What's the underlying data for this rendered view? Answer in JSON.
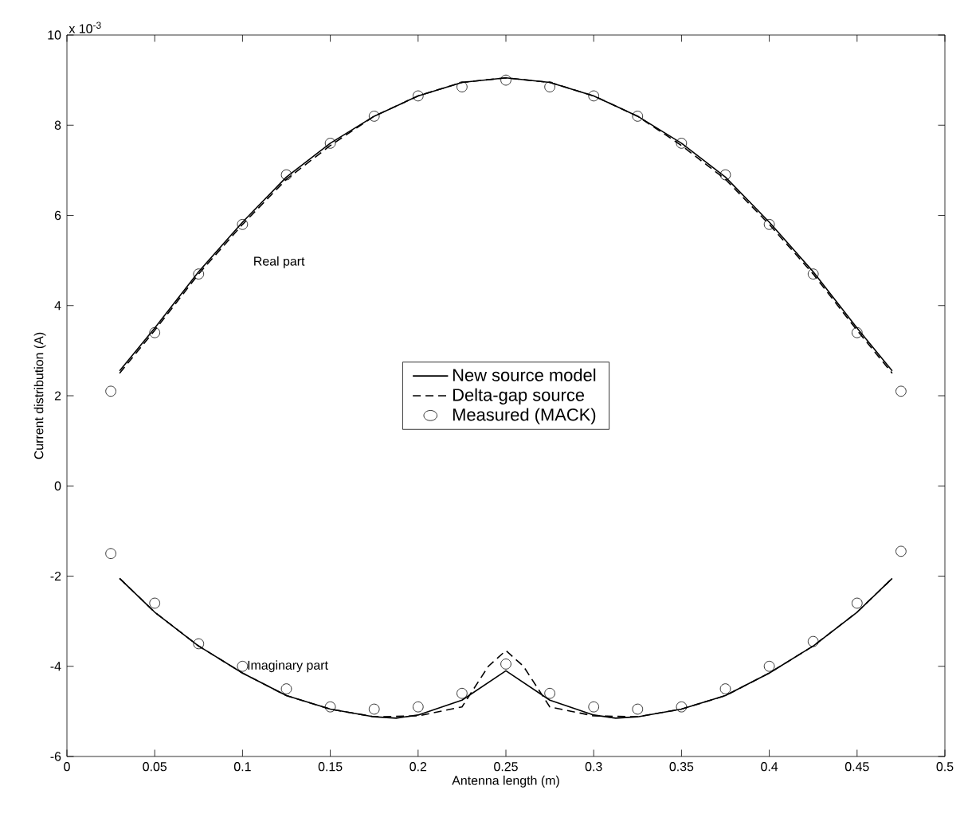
{
  "chart_data": {
    "type": "line",
    "xlabel": "Antenna length (m)",
    "ylabel": "Current distribution (A)",
    "xlim": [
      0,
      0.5
    ],
    "ylim": [
      -6,
      10
    ],
    "xticks": [
      0,
      0.05,
      0.1,
      0.15,
      0.2,
      0.25,
      0.3,
      0.35,
      0.4,
      0.45,
      0.5
    ],
    "yticks": [
      -6,
      -4,
      -2,
      0,
      2,
      4,
      6,
      8,
      10
    ],
    "grid": false,
    "legend": "center",
    "annotations": [
      "x 10$^{-3}$",
      "Real part",
      "Imaginary part"
    ],
    "series": [
      {
        "name": "New source model",
        "line_style": "solid",
        "color": "#000000",
        "x": [
          0.03,
          0.05,
          0.075,
          0.1,
          0.125,
          0.15,
          0.175,
          0.2,
          0.225,
          0.25,
          0.275,
          0.3,
          0.325,
          0.35,
          0.375,
          0.4,
          0.425,
          0.45,
          0.47
        ],
        "values": [
          2.55,
          3.5,
          4.75,
          5.85,
          6.85,
          7.6,
          8.2,
          8.65,
          8.95,
          9.05,
          8.95,
          8.65,
          8.2,
          7.6,
          6.85,
          5.85,
          4.75,
          3.5,
          2.55
        ]
      },
      {
        "name": "Delta-gap source",
        "line_style": "dashed",
        "color": "#000000",
        "x": [
          0.03,
          0.05,
          0.075,
          0.1,
          0.125,
          0.15,
          0.175,
          0.2,
          0.225,
          0.25,
          0.275,
          0.3,
          0.325,
          0.35,
          0.375,
          0.4,
          0.425,
          0.45,
          0.47
        ],
        "values": [
          2.5,
          3.45,
          4.7,
          5.8,
          6.8,
          7.55,
          8.2,
          8.65,
          8.95,
          9.05,
          8.95,
          8.65,
          8.2,
          7.55,
          6.8,
          5.8,
          4.7,
          3.45,
          2.5
        ]
      },
      {
        "name": "Measured (MACK)",
        "type": "scatter",
        "marker": "circle",
        "color": "#000000",
        "x": [
          0.025,
          0.05,
          0.075,
          0.1,
          0.125,
          0.15,
          0.175,
          0.2,
          0.225,
          0.25,
          0.275,
          0.3,
          0.325,
          0.35,
          0.375,
          0.4,
          0.425,
          0.45,
          0.475
        ],
        "values": [
          2.1,
          3.4,
          4.7,
          5.8,
          6.9,
          7.6,
          8.2,
          8.65,
          8.85,
          9.0,
          8.85,
          8.65,
          8.2,
          7.6,
          6.9,
          5.8,
          4.7,
          3.4,
          2.1
        ]
      },
      {
        "line_style": "solid",
        "color": "#000000",
        "x": [
          0.03,
          0.05,
          0.075,
          0.1,
          0.125,
          0.15,
          0.175,
          0.1875,
          0.2,
          0.225,
          0.25,
          0.275,
          0.3,
          0.3125,
          0.325,
          0.35,
          0.375,
          0.4,
          0.425,
          0.45,
          0.47
        ],
        "values": [
          -2.05,
          -2.8,
          -3.55,
          -4.15,
          -4.65,
          -4.95,
          -5.12,
          -5.15,
          -5.08,
          -4.75,
          -4.1,
          -4.75,
          -5.08,
          -5.15,
          -5.12,
          -4.95,
          -4.65,
          -4.15,
          -3.55,
          -2.8,
          -2.05
        ]
      },
      {
        "line_style": "dashed",
        "color": "#000000",
        "x": [
          0.03,
          0.05,
          0.075,
          0.1,
          0.125,
          0.15,
          0.175,
          0.2,
          0.225,
          0.24,
          0.25,
          0.26,
          0.275,
          0.3,
          0.325,
          0.35,
          0.375,
          0.4,
          0.425,
          0.45,
          0.47
        ],
        "values": [
          -2.05,
          -2.8,
          -3.55,
          -4.15,
          -4.65,
          -4.95,
          -5.12,
          -5.1,
          -4.9,
          -4.0,
          -3.65,
          -4.0,
          -4.9,
          -5.1,
          -5.12,
          -4.95,
          -4.65,
          -4.15,
          -3.55,
          -2.8,
          -2.05
        ]
      },
      {
        "type": "scatter",
        "marker": "circle",
        "color": "#000000",
        "x": [
          0.025,
          0.05,
          0.075,
          0.1,
          0.125,
          0.15,
          0.175,
          0.2,
          0.225,
          0.25,
          0.275,
          0.3,
          0.325,
          0.35,
          0.375,
          0.4,
          0.425,
          0.45,
          0.475
        ],
        "values": [
          -1.5,
          -2.6,
          -3.5,
          -4.0,
          -4.5,
          -4.9,
          -4.95,
          -4.9,
          -4.6,
          -3.95,
          -4.6,
          -4.9,
          -4.95,
          -4.9,
          -4.5,
          -4.0,
          -3.45,
          -2.6,
          -1.45
        ]
      }
    ]
  }
}
